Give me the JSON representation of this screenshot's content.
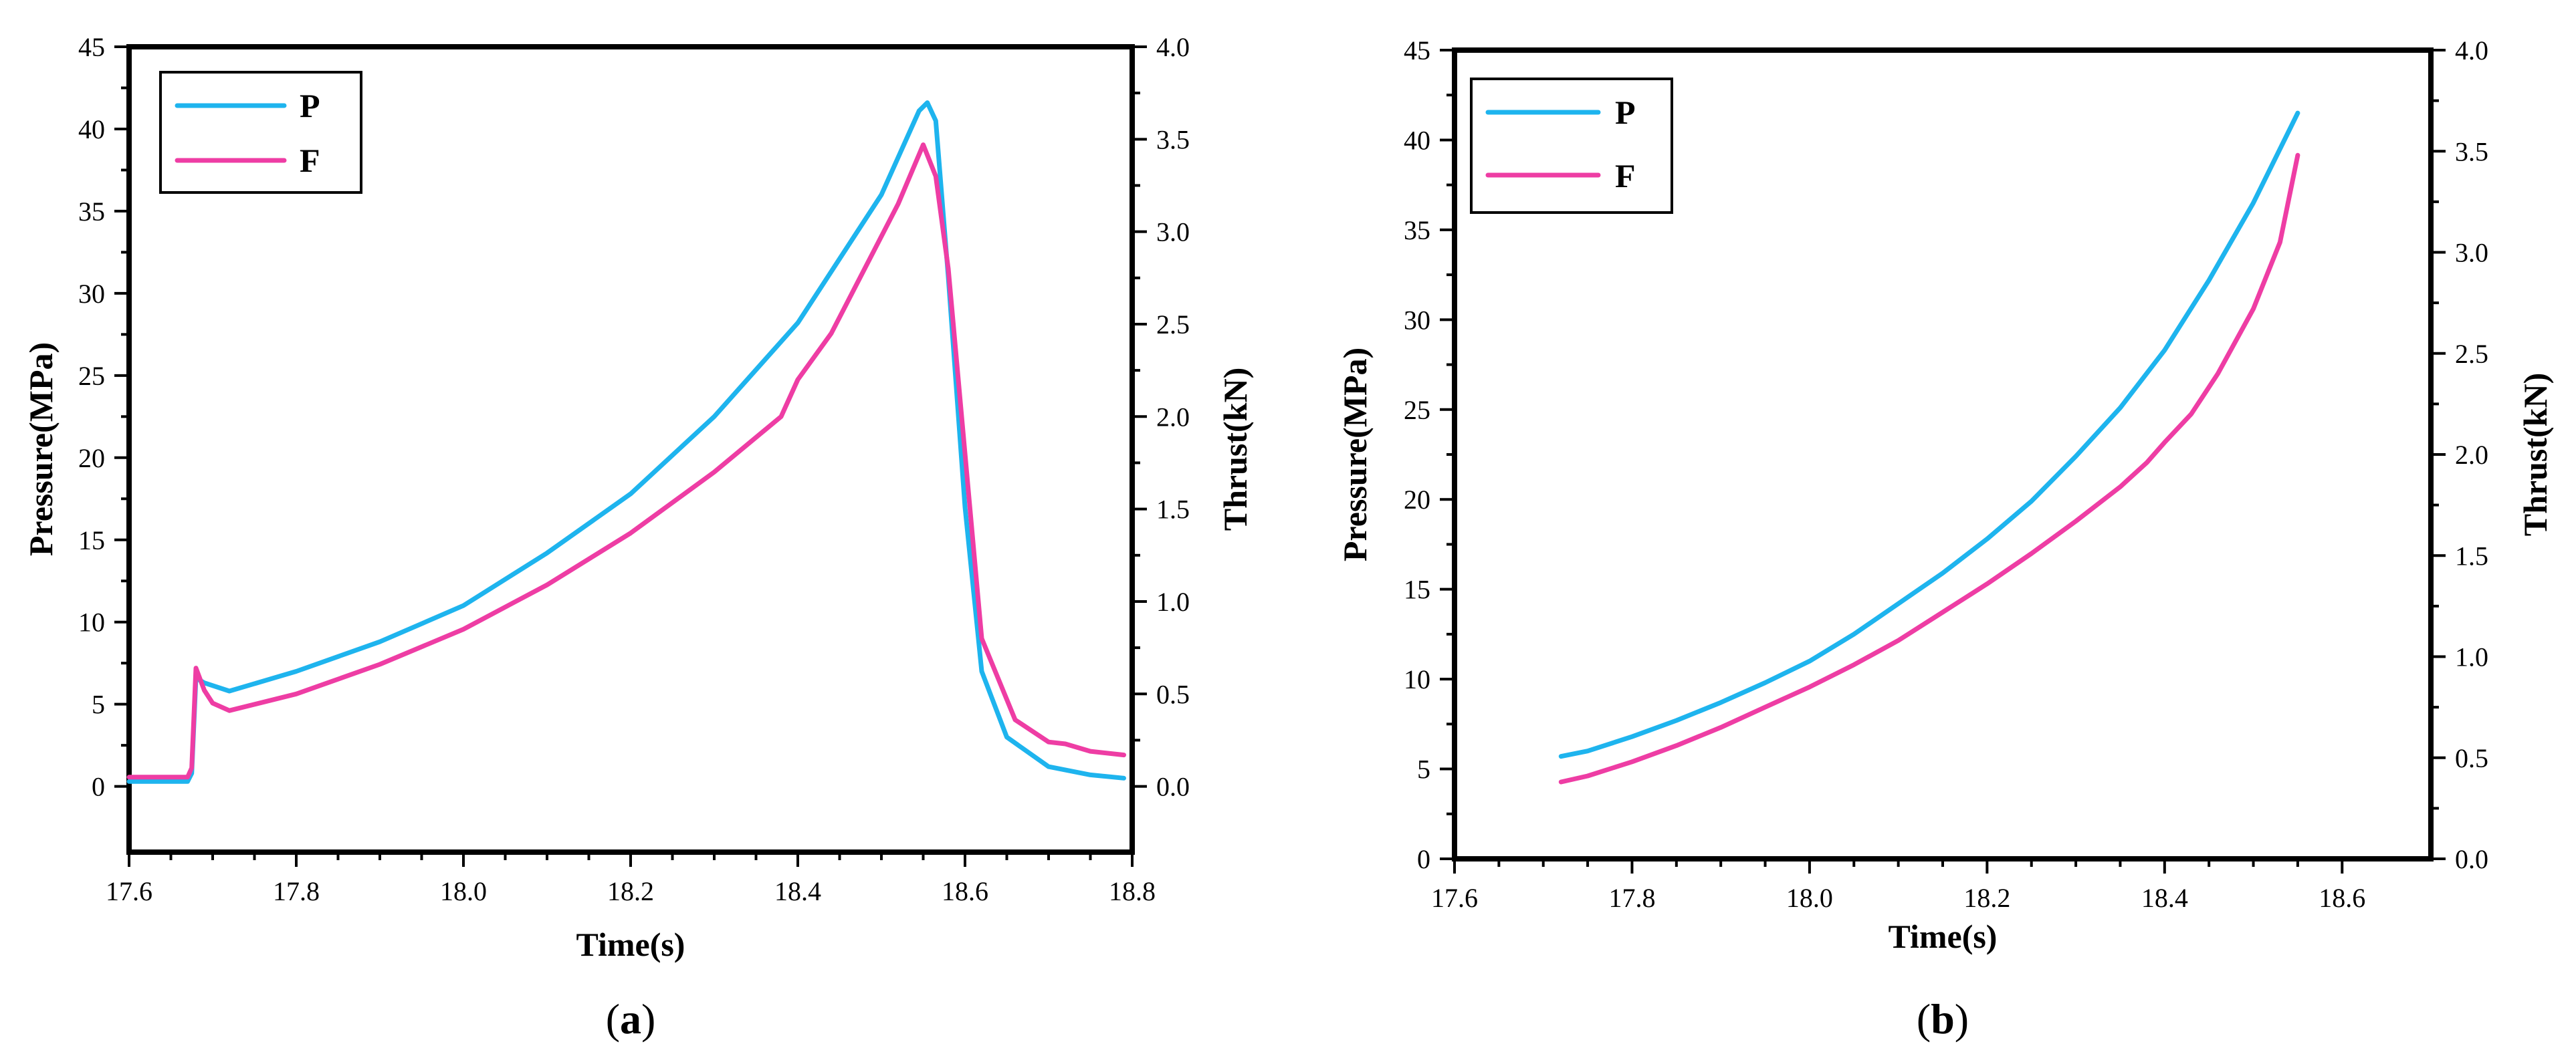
{
  "chart_data": [
    {
      "type": "line",
      "panel_label": {
        "prefix": "(",
        "letter": "a",
        "suffix": ")"
      },
      "xlabel": "Time(s)",
      "ylabel_left": "Pressure(MPa)",
      "ylabel_right": "Thrust(kN)",
      "xlim": [
        17.6,
        18.8
      ],
      "ylim_left": [
        -4,
        45
      ],
      "ylim_right": [
        -0.3556,
        4.0
      ],
      "xticks": [
        17.6,
        17.8,
        18.0,
        18.2,
        18.4,
        18.6,
        18.8
      ],
      "xtick_labels": [
        "17.6",
        "17.8",
        "18.0",
        "18.2",
        "18.4",
        "18.6",
        "18.8"
      ],
      "yticks_left": [
        0,
        5,
        10,
        15,
        20,
        25,
        30,
        35,
        40,
        45
      ],
      "ytick_labels_left": [
        "0",
        "5",
        "10",
        "15",
        "20",
        "25",
        "30",
        "35",
        "40",
        "45"
      ],
      "yticks_right": [
        0.0,
        0.5,
        1.0,
        1.5,
        2.0,
        2.5,
        3.0,
        3.5,
        4.0
      ],
      "ytick_labels_right": [
        "0.0",
        "0.5",
        "1.0",
        "1.5",
        "2.0",
        "2.5",
        "3.0",
        "3.5",
        "4.0"
      ],
      "legend_position": "top-left",
      "series": [
        {
          "name": "P",
          "axis": "left",
          "color": "#1EB4EE",
          "x": [
            17.6,
            17.67,
            17.675,
            17.68,
            17.69,
            17.72,
            17.8,
            17.9,
            18.0,
            18.1,
            18.2,
            18.3,
            18.4,
            18.5,
            18.545,
            18.555,
            18.565,
            18.58,
            18.6,
            18.62,
            18.65,
            18.7,
            18.75,
            18.79
          ],
          "y": [
            0.3,
            0.3,
            0.8,
            6.6,
            6.3,
            5.8,
            7.0,
            8.8,
            11.0,
            14.2,
            17.8,
            22.5,
            28.2,
            36.0,
            41.1,
            41.6,
            40.5,
            31.0,
            17.0,
            7.0,
            3.0,
            1.2,
            0.7,
            0.5
          ]
        },
        {
          "name": "F",
          "axis": "right",
          "color": "#EE3DA4",
          "x": [
            17.6,
            17.67,
            17.675,
            17.68,
            17.69,
            17.7,
            17.72,
            17.8,
            17.9,
            18.0,
            18.1,
            18.2,
            18.3,
            18.38,
            18.4,
            18.44,
            18.48,
            18.52,
            18.55,
            18.565,
            18.58,
            18.6,
            18.62,
            18.66,
            18.7,
            18.72,
            18.75,
            18.79
          ],
          "y": [
            0.05,
            0.05,
            0.1,
            0.64,
            0.52,
            0.45,
            0.41,
            0.5,
            0.66,
            0.85,
            1.09,
            1.37,
            1.7,
            2.0,
            2.2,
            2.45,
            2.8,
            3.15,
            3.47,
            3.3,
            2.8,
            1.8,
            0.8,
            0.36,
            0.24,
            0.23,
            0.19,
            0.17
          ]
        }
      ]
    },
    {
      "type": "line",
      "panel_label": {
        "prefix": "(",
        "letter": "b",
        "suffix": ")"
      },
      "xlabel": "Time(s)",
      "ylabel_left": "Pressure(MPa)",
      "ylabel_right": "Thrust(kN)",
      "xlim": [
        17.6,
        18.7
      ],
      "ylim_left": [
        0,
        45
      ],
      "ylim_right": [
        0,
        4.0
      ],
      "xticks": [
        17.6,
        17.8,
        18.0,
        18.2,
        18.4,
        18.6
      ],
      "xtick_labels": [
        "17.6",
        "17.8",
        "18.0",
        "18.2",
        "18.4",
        "18.6"
      ],
      "yticks_left": [
        0,
        5,
        10,
        15,
        20,
        25,
        30,
        35,
        40,
        45
      ],
      "ytick_labels_left": [
        "0",
        "5",
        "10",
        "15",
        "20",
        "25",
        "30",
        "35",
        "40",
        "45"
      ],
      "yticks_right": [
        0.0,
        0.5,
        1.0,
        1.5,
        2.0,
        2.5,
        3.0,
        3.5,
        4.0
      ],
      "ytick_labels_right": [
        "0.0",
        "0.5",
        "1.0",
        "1.5",
        "2.0",
        "2.5",
        "3.0",
        "3.5",
        "4.0"
      ],
      "legend_position": "top-left",
      "series": [
        {
          "name": "P",
          "axis": "left",
          "color": "#1EB4EE",
          "x": [
            17.72,
            17.75,
            17.8,
            17.85,
            17.9,
            17.95,
            18.0,
            18.05,
            18.1,
            18.15,
            18.2,
            18.25,
            18.3,
            18.35,
            18.4,
            18.45,
            18.5,
            18.55
          ],
          "y": [
            5.7,
            6.0,
            6.8,
            7.7,
            8.7,
            9.8,
            11.0,
            12.5,
            14.2,
            15.9,
            17.8,
            19.9,
            22.4,
            25.1,
            28.3,
            32.2,
            36.5,
            41.5
          ]
        },
        {
          "name": "F",
          "axis": "right",
          "color": "#EE3DA4",
          "x": [
            17.72,
            17.75,
            17.8,
            17.85,
            17.9,
            17.95,
            18.0,
            18.05,
            18.1,
            18.15,
            18.2,
            18.25,
            18.3,
            18.35,
            18.38,
            18.4,
            18.43,
            18.46,
            18.5,
            18.53,
            18.55
          ],
          "y": [
            0.38,
            0.41,
            0.48,
            0.56,
            0.65,
            0.75,
            0.85,
            0.96,
            1.08,
            1.22,
            1.36,
            1.51,
            1.67,
            1.84,
            1.96,
            2.06,
            2.2,
            2.4,
            2.72,
            3.05,
            3.48
          ]
        }
      ]
    }
  ]
}
